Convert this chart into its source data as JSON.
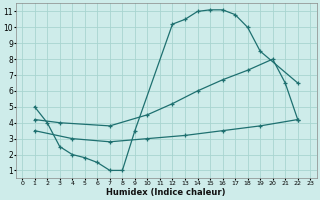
{
  "xlabel": "Humidex (Indice chaleur)",
  "background_color": "#ceecea",
  "grid_color": "#a8d5d0",
  "line_color": "#1e7070",
  "xlim": [
    -0.5,
    23.5
  ],
  "ylim": [
    0.5,
    11.5
  ],
  "xticks": [
    0,
    1,
    2,
    3,
    4,
    5,
    6,
    7,
    8,
    9,
    10,
    11,
    12,
    13,
    14,
    15,
    16,
    17,
    18,
    19,
    20,
    21,
    22,
    23
  ],
  "yticks": [
    1,
    2,
    3,
    4,
    5,
    6,
    7,
    8,
    9,
    10,
    11
  ],
  "curve1_x": [
    1,
    2,
    3,
    4,
    5,
    6,
    7,
    8,
    9,
    12,
    13,
    14,
    15,
    16,
    17,
    18,
    19,
    22
  ],
  "curve1_y": [
    5.0,
    4.0,
    2.5,
    2.0,
    1.8,
    1.5,
    1.0,
    1.0,
    3.5,
    10.2,
    10.5,
    11.0,
    11.1,
    11.1,
    10.8,
    10.0,
    8.5,
    6.5
  ],
  "curve2_x": [
    1,
    3,
    7,
    10,
    12,
    14,
    16,
    18,
    20,
    21,
    22
  ],
  "curve2_y": [
    4.2,
    4.0,
    3.8,
    4.5,
    5.2,
    6.0,
    6.7,
    7.3,
    8.0,
    6.5,
    4.2
  ],
  "curve3_x": [
    1,
    4,
    7,
    10,
    13,
    16,
    19,
    22
  ],
  "curve3_y": [
    3.5,
    3.0,
    2.8,
    3.0,
    3.2,
    3.5,
    3.8,
    4.2
  ]
}
